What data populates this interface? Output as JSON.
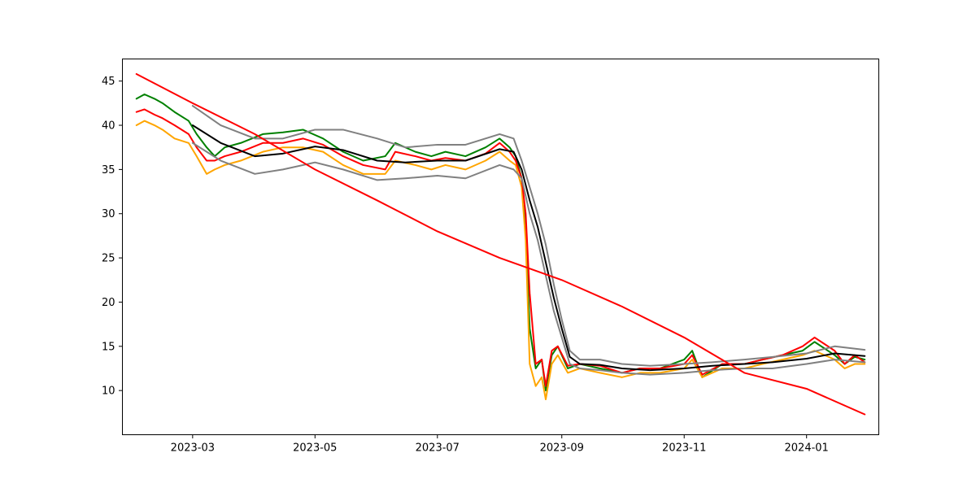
{
  "chart_data": {
    "type": "line",
    "title": "",
    "xlabel": "",
    "ylabel": "",
    "x_range": [
      "2023-01-25",
      "2024-02-06"
    ],
    "ylim": [
      5.0,
      47.5
    ],
    "grid": false,
    "legend": "none",
    "x_ticks": [
      {
        "date": "2023-03-01",
        "label": "2023-03"
      },
      {
        "date": "2023-05-01",
        "label": "2023-05"
      },
      {
        "date": "2023-07-01",
        "label": "2023-07"
      },
      {
        "date": "2023-09-01",
        "label": "2023-09"
      },
      {
        "date": "2023-11-01",
        "label": "2023-11"
      },
      {
        "date": "2024-01-01",
        "label": "2024-01"
      }
    ],
    "y_ticks": [
      {
        "value": 10,
        "label": "10"
      },
      {
        "value": 15,
        "label": "15"
      },
      {
        "value": 20,
        "label": "20"
      },
      {
        "value": 25,
        "label": "25"
      },
      {
        "value": 30,
        "label": "30"
      },
      {
        "value": 35,
        "label": "35"
      },
      {
        "value": 40,
        "label": "40"
      },
      {
        "value": 45,
        "label": "45"
      }
    ],
    "series": [
      {
        "color": "#008000",
        "dates": [
          "2023-02-01",
          "2023-02-05",
          "2023-02-10",
          "2023-02-14",
          "2023-02-20",
          "2023-02-27",
          "2023-03-03",
          "2023-03-08",
          "2023-03-12",
          "2023-03-17",
          "2023-03-25",
          "2023-04-05",
          "2023-04-15",
          "2023-04-25",
          "2023-05-05",
          "2023-05-15",
          "2023-05-25",
          "2023-06-05",
          "2023-06-10",
          "2023-06-20",
          "2023-06-28",
          "2023-07-05",
          "2023-07-15",
          "2023-07-25",
          "2023-08-01",
          "2023-08-06",
          "2023-08-09",
          "2023-08-12",
          "2023-08-14",
          "2023-08-16",
          "2023-08-19",
          "2023-08-22",
          "2023-08-24",
          "2023-08-27",
          "2023-08-30",
          "2023-09-04",
          "2023-09-10",
          "2023-09-20",
          "2023-10-01",
          "2023-10-10",
          "2023-10-20",
          "2023-11-01",
          "2023-11-05",
          "2023-11-10",
          "2023-11-20",
          "2023-12-01",
          "2023-12-10",
          "2023-12-20",
          "2023-12-30",
          "2024-01-05",
          "2024-01-15",
          "2024-01-20",
          "2024-01-25",
          "2024-01-30"
        ],
        "values": [
          43.0,
          43.5,
          43.0,
          42.5,
          41.5,
          40.5,
          39.0,
          37.5,
          36.5,
          37.5,
          38.0,
          39.0,
          39.2,
          39.5,
          38.5,
          37.0,
          36.0,
          36.5,
          38.0,
          37.0,
          36.5,
          37.0,
          36.5,
          37.5,
          38.5,
          37.5,
          36.5,
          34.0,
          28.0,
          17.0,
          12.5,
          13.5,
          10.0,
          14.0,
          15.0,
          12.5,
          13.0,
          12.5,
          12.0,
          12.5,
          12.5,
          13.5,
          14.5,
          11.5,
          13.0,
          13.0,
          13.5,
          14.0,
          14.5,
          15.5,
          14.0,
          13.0,
          13.8,
          13.5
        ]
      },
      {
        "color": "#ffa500",
        "dates": [
          "2023-02-01",
          "2023-02-05",
          "2023-02-10",
          "2023-02-14",
          "2023-02-20",
          "2023-02-27",
          "2023-03-03",
          "2023-03-08",
          "2023-03-12",
          "2023-03-17",
          "2023-03-25",
          "2023-04-05",
          "2023-04-15",
          "2023-04-25",
          "2023-05-05",
          "2023-05-15",
          "2023-05-25",
          "2023-06-05",
          "2023-06-10",
          "2023-06-20",
          "2023-06-28",
          "2023-07-05",
          "2023-07-15",
          "2023-07-25",
          "2023-08-01",
          "2023-08-06",
          "2023-08-09",
          "2023-08-12",
          "2023-08-14",
          "2023-08-16",
          "2023-08-19",
          "2023-08-22",
          "2023-08-24",
          "2023-08-27",
          "2023-08-30",
          "2023-09-04",
          "2023-09-10",
          "2023-09-20",
          "2023-10-01",
          "2023-10-10",
          "2023-10-20",
          "2023-11-01",
          "2023-11-05",
          "2023-11-10",
          "2023-11-20",
          "2023-12-01",
          "2023-12-10",
          "2023-12-20",
          "2023-12-30",
          "2024-01-05",
          "2024-01-15",
          "2024-01-20",
          "2024-01-25",
          "2024-01-30"
        ],
        "values": [
          40.0,
          40.5,
          40.0,
          39.5,
          38.5,
          38.0,
          36.5,
          34.5,
          35.0,
          35.5,
          36.0,
          37.0,
          37.5,
          37.5,
          37.0,
          35.5,
          34.5,
          34.5,
          36.0,
          35.5,
          35.0,
          35.5,
          35.0,
          36.0,
          37.0,
          36.0,
          35.5,
          33.0,
          27.0,
          13.0,
          10.5,
          11.5,
          9.0,
          13.0,
          14.0,
          12.0,
          12.5,
          12.0,
          11.5,
          12.0,
          12.0,
          12.5,
          13.5,
          11.5,
          12.5,
          12.5,
          13.0,
          13.5,
          14.0,
          14.5,
          13.5,
          12.5,
          13.0,
          13.0
        ]
      },
      {
        "color": "#ff0000",
        "dates": [
          "2023-02-01",
          "2023-02-05",
          "2023-02-10",
          "2023-02-14",
          "2023-02-20",
          "2023-02-27",
          "2023-03-03",
          "2023-03-08",
          "2023-03-12",
          "2023-03-17",
          "2023-03-25",
          "2023-04-05",
          "2023-04-15",
          "2023-04-25",
          "2023-05-05",
          "2023-05-15",
          "2023-05-25",
          "2023-06-05",
          "2023-06-10",
          "2023-06-20",
          "2023-06-28",
          "2023-07-05",
          "2023-07-15",
          "2023-07-25",
          "2023-08-01",
          "2023-08-06",
          "2023-08-09",
          "2023-08-12",
          "2023-08-14",
          "2023-08-16",
          "2023-08-19",
          "2023-08-22",
          "2023-08-24",
          "2023-08-27",
          "2023-08-30",
          "2023-09-04",
          "2023-09-10",
          "2023-09-20",
          "2023-10-01",
          "2023-10-10",
          "2023-10-20",
          "2023-11-01",
          "2023-11-05",
          "2023-11-10",
          "2023-11-20",
          "2023-12-01",
          "2023-12-10",
          "2023-12-20",
          "2023-12-30",
          "2024-01-05",
          "2024-01-15",
          "2024-01-20",
          "2024-01-25",
          "2024-01-30"
        ],
        "values": [
          41.5,
          41.8,
          41.2,
          40.8,
          40.0,
          39.0,
          37.5,
          36.0,
          36.0,
          36.5,
          37.0,
          38.0,
          38.0,
          38.5,
          37.8,
          36.5,
          35.5,
          35.0,
          37.0,
          36.5,
          36.0,
          36.3,
          36.0,
          36.8,
          38.0,
          37.0,
          36.0,
          34.0,
          30.0,
          21.0,
          13.0,
          13.5,
          10.5,
          14.5,
          15.0,
          12.8,
          13.0,
          12.8,
          12.0,
          12.5,
          12.5,
          13.0,
          14.0,
          11.8,
          13.0,
          13.0,
          13.5,
          14.0,
          15.0,
          16.0,
          14.5,
          13.0,
          14.0,
          13.2
        ]
      },
      {
        "color": "#808080",
        "dates": [
          "2023-03-01",
          "2023-03-15",
          "2023-04-01",
          "2023-04-15",
          "2023-05-01",
          "2023-05-15",
          "2023-06-01",
          "2023-06-15",
          "2023-07-01",
          "2023-07-15",
          "2023-08-01",
          "2023-08-08",
          "2023-08-12",
          "2023-08-16",
          "2023-08-20",
          "2023-08-24",
          "2023-08-28",
          "2023-09-01",
          "2023-09-05",
          "2023-09-10",
          "2023-09-20",
          "2023-10-01",
          "2023-10-15",
          "2023-11-01",
          "2023-11-15",
          "2023-12-01",
          "2023-12-15",
          "2024-01-01",
          "2024-01-15",
          "2024-01-30"
        ],
        "values": [
          42.2,
          40.0,
          38.5,
          38.5,
          39.5,
          39.5,
          38.5,
          37.5,
          37.8,
          37.8,
          39.0,
          38.5,
          36.0,
          33.0,
          30.0,
          26.5,
          22.0,
          18.0,
          14.5,
          13.5,
          13.5,
          13.0,
          12.8,
          13.0,
          13.2,
          13.5,
          13.8,
          14.2,
          15.0,
          14.6
        ]
      },
      {
        "color": "#808080",
        "dates": [
          "2023-03-01",
          "2023-03-15",
          "2023-04-01",
          "2023-04-15",
          "2023-05-01",
          "2023-05-15",
          "2023-06-01",
          "2023-06-15",
          "2023-07-01",
          "2023-07-15",
          "2023-08-01",
          "2023-08-08",
          "2023-08-12",
          "2023-08-16",
          "2023-08-20",
          "2023-08-24",
          "2023-08-28",
          "2023-09-01",
          "2023-09-05",
          "2023-09-10",
          "2023-09-20",
          "2023-10-01",
          "2023-10-15",
          "2023-11-01",
          "2023-11-15",
          "2023-12-01",
          "2023-12-15",
          "2024-01-01",
          "2024-01-15",
          "2024-01-30"
        ],
        "values": [
          38.0,
          36.0,
          34.5,
          35.0,
          35.8,
          35.0,
          33.8,
          34.0,
          34.3,
          34.0,
          35.5,
          35.0,
          34.0,
          30.0,
          27.0,
          23.0,
          19.0,
          16.0,
          13.0,
          12.5,
          12.3,
          12.0,
          11.8,
          12.0,
          12.3,
          12.5,
          12.5,
          13.0,
          13.5,
          13.2
        ]
      },
      {
        "color": "#000000",
        "dates": [
          "2023-03-01",
          "2023-03-15",
          "2023-04-01",
          "2023-04-15",
          "2023-05-01",
          "2023-05-15",
          "2023-06-01",
          "2023-06-15",
          "2023-07-01",
          "2023-07-15",
          "2023-08-01",
          "2023-08-08",
          "2023-08-12",
          "2023-08-16",
          "2023-08-20",
          "2023-08-24",
          "2023-08-28",
          "2023-09-01",
          "2023-09-05",
          "2023-09-10",
          "2023-09-20",
          "2023-10-01",
          "2023-10-15",
          "2023-11-01",
          "2023-11-15",
          "2023-12-01",
          "2023-12-15",
          "2024-01-01",
          "2024-01-15",
          "2024-01-30"
        ],
        "values": [
          40.0,
          38.0,
          36.5,
          36.8,
          37.6,
          37.2,
          36.0,
          35.8,
          36.0,
          36.0,
          37.3,
          37.0,
          35.0,
          31.5,
          28.5,
          24.5,
          20.5,
          17.0,
          13.8,
          13.0,
          12.9,
          12.5,
          12.3,
          12.5,
          12.8,
          13.0,
          13.2,
          13.6,
          14.2,
          13.9
        ]
      },
      {
        "color": "#ff0000",
        "dates": [
          "2023-02-01",
          "2023-03-01",
          "2023-04-01",
          "2023-05-01",
          "2023-06-01",
          "2023-07-01",
          "2023-08-01",
          "2023-09-01",
          "2023-10-01",
          "2023-11-01",
          "2023-12-01",
          "2024-01-01",
          "2024-01-30"
        ],
        "values": [
          45.8,
          42.5,
          39.0,
          35.0,
          31.5,
          28.0,
          25.0,
          22.5,
          19.5,
          16.0,
          12.0,
          10.2,
          7.3
        ]
      }
    ]
  }
}
